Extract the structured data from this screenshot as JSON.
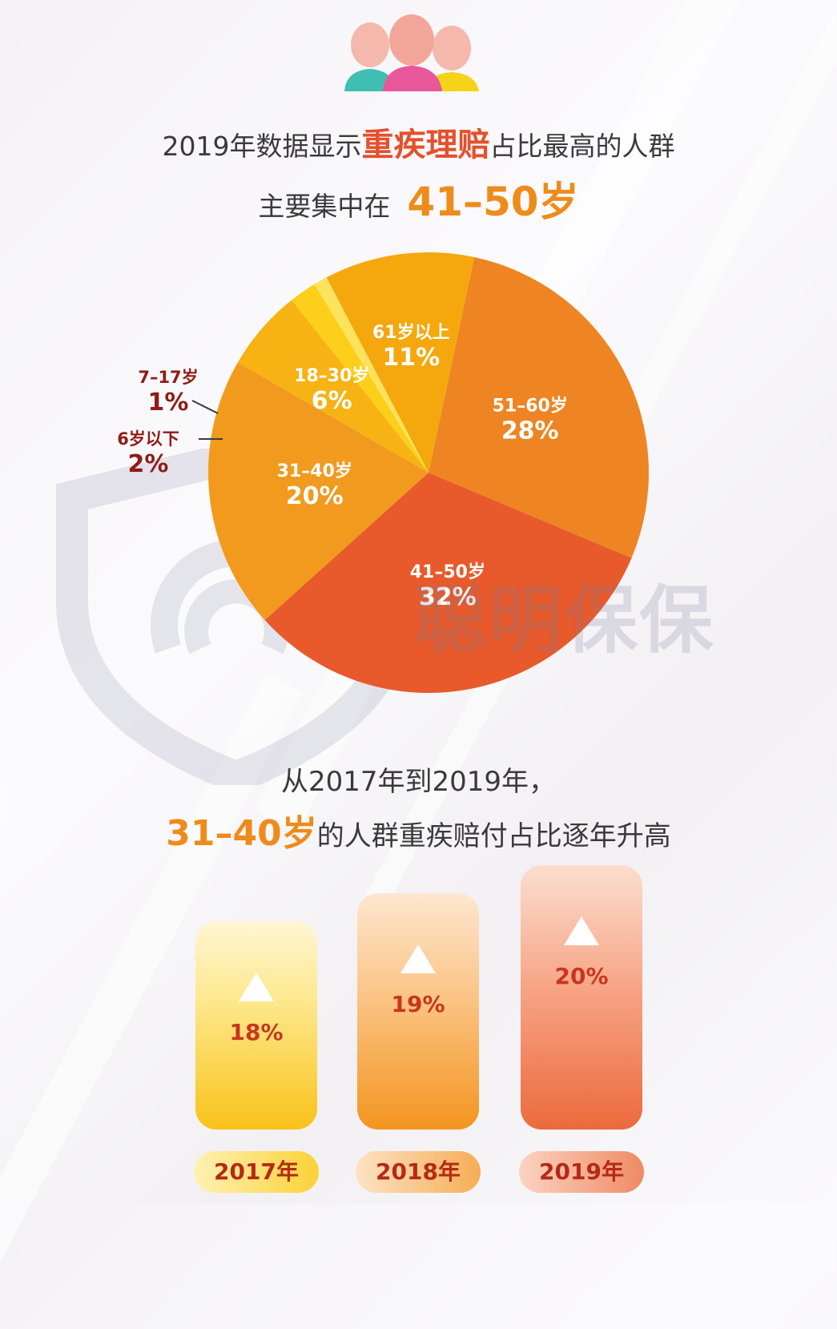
{
  "header": {
    "line1_prefix": "2019年数据显示",
    "line1_highlight": "重疾理赔",
    "line1_suffix": "占比最高的人群",
    "line2_prefix": "主要集中在",
    "line2_highlight": "41–50岁"
  },
  "watermark": "聪明保保",
  "chart_data": [
    {
      "type": "pie",
      "slices": [
        {
          "label": "51–60岁",
          "value": 28,
          "display": "28%",
          "color": "#ee8522"
        },
        {
          "label": "41–50岁",
          "value": 32,
          "display": "32%",
          "color": "#e85a2c"
        },
        {
          "label": "31–40岁",
          "value": 20,
          "display": "20%",
          "color": "#f19a1d"
        },
        {
          "label": "18–30岁",
          "value": 6,
          "display": "6%",
          "color": "#f7b214"
        },
        {
          "label": "6岁以下",
          "value": 2,
          "display": "2%",
          "color": "#fbcf1a"
        },
        {
          "label": "7–17岁",
          "value": 1,
          "display": "1%",
          "color": "#fde35c"
        },
        {
          "label": "61岁以上",
          "value": 11,
          "display": "11%",
          "color": "#f4a80d"
        }
      ]
    },
    {
      "type": "bar",
      "categories": [
        "2017年",
        "2018年",
        "2019年"
      ],
      "values": [
        18,
        19,
        20
      ],
      "display": [
        "18%",
        "19%",
        "20%"
      ]
    }
  ],
  "section2": {
    "line1": "从2017年到2019年，",
    "line2_highlight": "31–40岁",
    "line2_suffix": "的人群重疾赔付占比逐年升高"
  }
}
